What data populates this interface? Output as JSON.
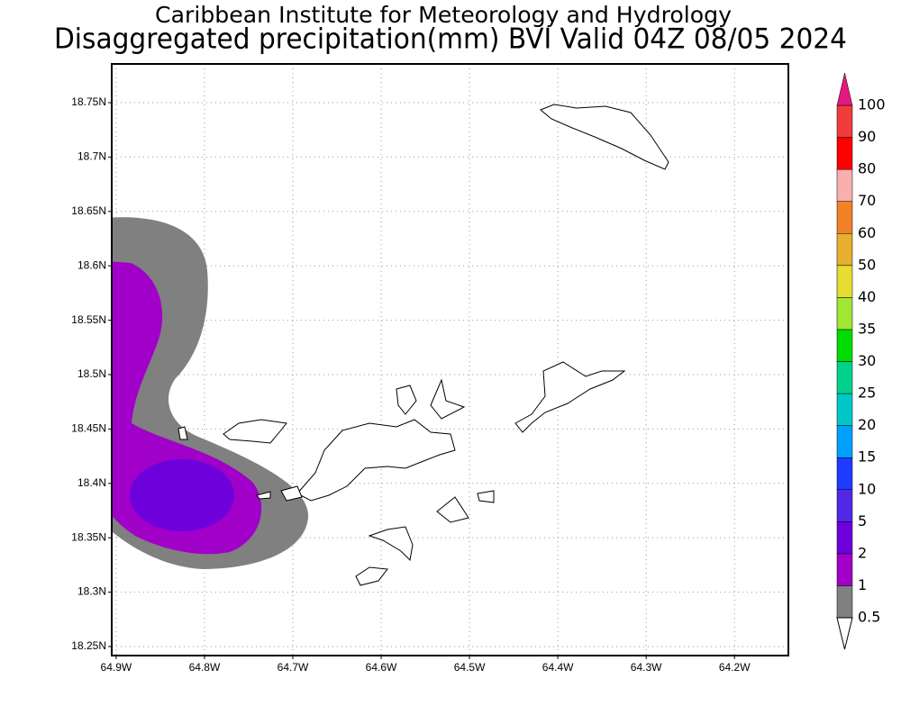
{
  "map": {
    "title": "Caribbean Institute for Meteorology and Hydrology",
    "subtitle": "Disaggregated precipitation(mm) BVI Valid 04Z 08/05 2024",
    "xlim": [
      -64.905,
      -64.139
    ],
    "ylim": [
      18.2417,
      18.7856
    ],
    "lat_ticks": [
      {
        "value": 18.75,
        "label": "18.75N"
      },
      {
        "value": 18.7,
        "label": "18.7N"
      },
      {
        "value": 18.65,
        "label": "18.65N"
      },
      {
        "value": 18.6,
        "label": "18.6N"
      },
      {
        "value": 18.55,
        "label": "18.55N"
      },
      {
        "value": 18.5,
        "label": "18.5N"
      },
      {
        "value": 18.45,
        "label": "18.45N"
      },
      {
        "value": 18.4,
        "label": "18.4N"
      },
      {
        "value": 18.35,
        "label": "18.35N"
      },
      {
        "value": 18.3,
        "label": "18.3N"
      },
      {
        "value": 18.25,
        "label": "18.25N"
      }
    ],
    "lon_ticks": [
      {
        "value": -64.9,
        "label": "64.9W"
      },
      {
        "value": -64.8,
        "label": "64.8W"
      },
      {
        "value": -64.7,
        "label": "64.7W"
      },
      {
        "value": -64.6,
        "label": "64.6W"
      },
      {
        "value": -64.5,
        "label": "64.5W"
      },
      {
        "value": -64.4,
        "label": "64.4W"
      },
      {
        "value": -64.3,
        "label": "64.3W"
      },
      {
        "value": -64.2,
        "label": "64.2W"
      }
    ],
    "grid": true,
    "legend": {
      "levels": [
        0.5,
        1,
        2,
        5,
        10,
        15,
        20,
        25,
        30,
        35,
        40,
        50,
        60,
        70,
        80,
        90,
        100
      ],
      "colors": [
        "#808080",
        "#a000c8",
        "#6e00dc",
        "#5028e6",
        "#1e3cff",
        "#00a0ff",
        "#00c8c8",
        "#00d28c",
        "#00dc00",
        "#a0e632",
        "#e6dc32",
        "#e6af2d",
        "#f08228",
        "#faafaf",
        "#ff0000",
        "#f03c3c"
      ],
      "under_color": "#ffffff",
      "over_color": "#e6177e"
    }
  }
}
